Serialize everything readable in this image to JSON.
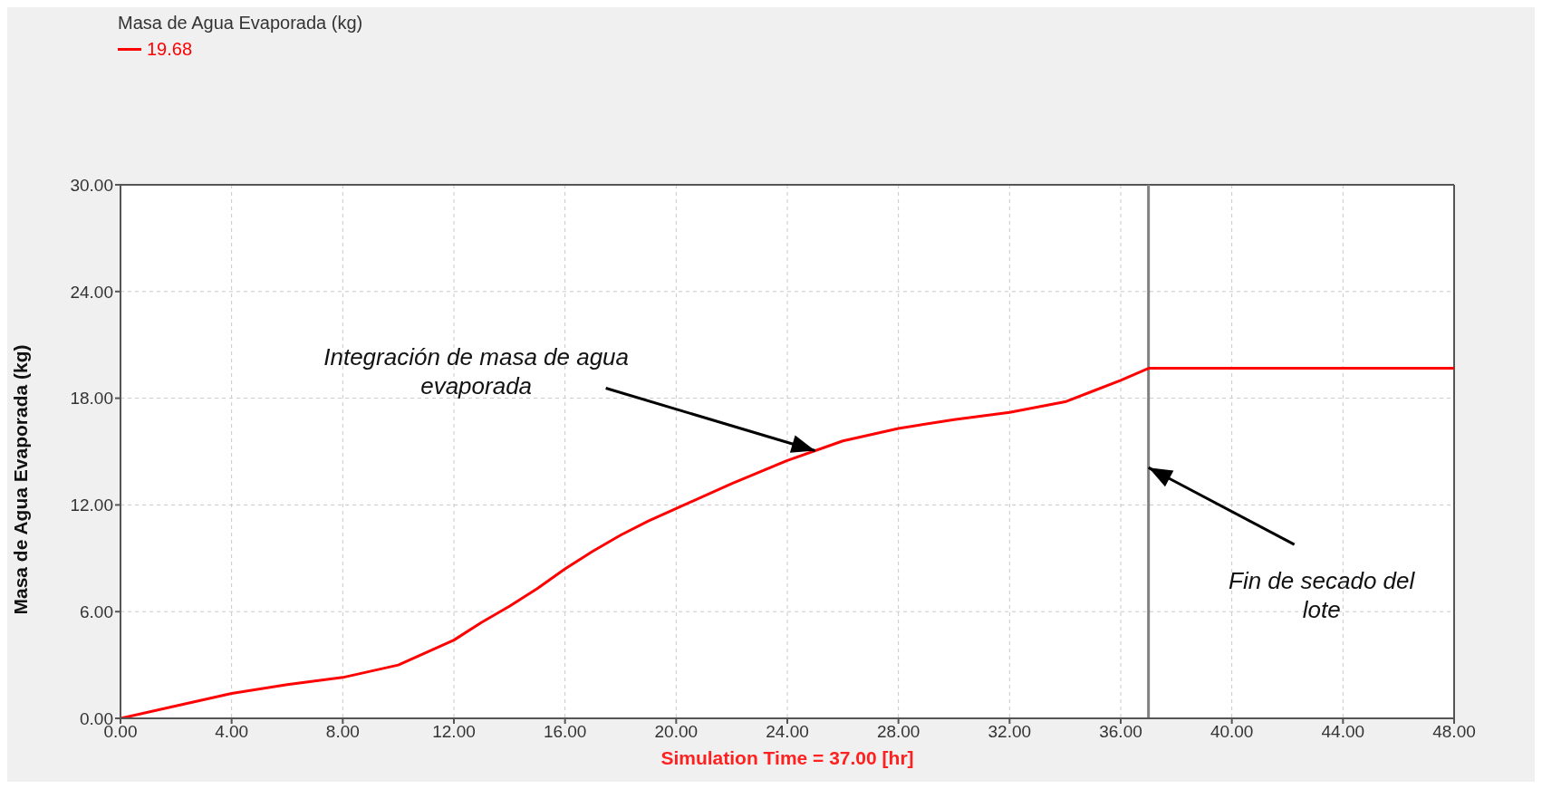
{
  "chart_data": {
    "type": "line",
    "xlabel": "Simulation Time =  37.00 [hr]",
    "ylabel": "Masa de Agua Evaporada (kg)",
    "legend_title": "Masa de Agua Evaporada (kg)",
    "legend": "top left",
    "grid": true,
    "marker": "none",
    "line_style": "solid",
    "xlim": [
      0,
      48
    ],
    "ylim": [
      0,
      30
    ],
    "xticks": [
      {
        "value": 0,
        "label": "0.00"
      },
      {
        "value": 4,
        "label": "4.00"
      },
      {
        "value": 8,
        "label": "8.00"
      },
      {
        "value": 12,
        "label": "12.00"
      },
      {
        "value": 16,
        "label": "16.00"
      },
      {
        "value": 20,
        "label": "20.00"
      },
      {
        "value": 24,
        "label": "24.00"
      },
      {
        "value": 28,
        "label": "28.00"
      },
      {
        "value": 32,
        "label": "32.00"
      },
      {
        "value": 36,
        "label": "36.00"
      },
      {
        "value": 40,
        "label": "40.00"
      },
      {
        "value": 44,
        "label": "44.00"
      },
      {
        "value": 48,
        "label": "48.00"
      }
    ],
    "yticks": [
      {
        "value": 0,
        "label": "0.00"
      },
      {
        "value": 6,
        "label": "6.00"
      },
      {
        "value": 12,
        "label": "12.00"
      },
      {
        "value": 18,
        "label": "18.00"
      },
      {
        "value": 24,
        "label": "24.00"
      },
      {
        "value": 30,
        "label": "30.00"
      }
    ],
    "series": [
      {
        "name": "19.68",
        "color": "#ff0000",
        "x": [
          0,
          2,
          4,
          6,
          8,
          10,
          11,
          12,
          13,
          14,
          15,
          16,
          17,
          18,
          19,
          20,
          22,
          24,
          26,
          28,
          30,
          32,
          34,
          35,
          36,
          37,
          48
        ],
        "values": [
          0,
          0.7,
          1.4,
          1.9,
          2.3,
          3.0,
          3.7,
          4.4,
          5.4,
          6.3,
          7.3,
          8.4,
          9.4,
          10.3,
          11.1,
          11.8,
          13.2,
          14.5,
          15.6,
          16.3,
          16.8,
          17.2,
          17.8,
          18.4,
          19.0,
          19.68,
          19.68
        ]
      }
    ],
    "ref_lines": [
      {
        "axis": "x",
        "value": 37,
        "color": "#808080"
      }
    ],
    "annotations": [
      {
        "text": "Integración de masa de agua evaporada",
        "x": 25,
        "y": 15.05
      },
      {
        "text": "Fin de secado del lote",
        "x": 37,
        "y": 14.1
      }
    ]
  }
}
